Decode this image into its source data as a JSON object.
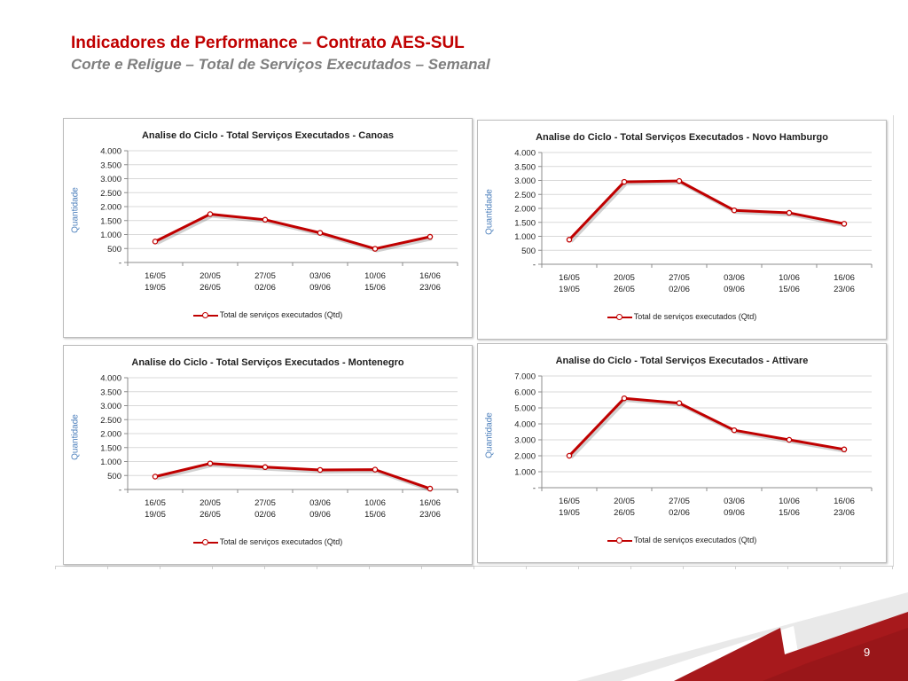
{
  "slide": {
    "title": "Indicadores de Performance – Contrato AES-SUL",
    "subtitle": "Corte e Religue – Total de Serviços Executados – Semanal",
    "page_number": "9"
  },
  "colors": {
    "title": "#c00000",
    "subtitle": "#7f7f7f",
    "series_line": "#c00000",
    "axis_label": "#4a7ebb"
  },
  "chart_data": [
    {
      "type": "line",
      "title": "Analise do Ciclo - Total Serviços Executados - Canoas",
      "ylabel": "Quantidade",
      "xlabel": "",
      "categories": [
        [
          "16/05",
          "19/05"
        ],
        [
          "20/05",
          "26/05"
        ],
        [
          "27/05",
          "02/06"
        ],
        [
          "03/06",
          "09/06"
        ],
        [
          "10/06",
          "15/06"
        ],
        [
          "16/06",
          "23/06"
        ]
      ],
      "ylim": [
        0,
        4000
      ],
      "yticks": [
        "-",
        "500",
        "1.000",
        "1.500",
        "2.000",
        "2.500",
        "3.000",
        "3.500",
        "4.000"
      ],
      "grid": true,
      "legend_position": "bottom",
      "series": [
        {
          "name": "Total de serviços executados (Qtd)",
          "values": [
            750,
            1730,
            1530,
            1060,
            490,
            920
          ]
        }
      ]
    },
    {
      "type": "line",
      "title": "Analise do Ciclo - Total Serviços Executados - Novo Hamburgo",
      "ylabel": "Quantidade",
      "xlabel": "",
      "categories": [
        [
          "16/05",
          "19/05"
        ],
        [
          "20/05",
          "26/05"
        ],
        [
          "27/05",
          "02/06"
        ],
        [
          "03/06",
          "09/06"
        ],
        [
          "10/06",
          "15/06"
        ],
        [
          "16/06",
          "23/06"
        ]
      ],
      "ylim": [
        0,
        4000
      ],
      "yticks": [
        "-",
        "500",
        "1.000",
        "1.500",
        "2.000",
        "2.500",
        "3.000",
        "3.500",
        "4.000"
      ],
      "grid": true,
      "legend_position": "bottom",
      "series": [
        {
          "name": "Total de serviços executados (Qtd)",
          "values": [
            880,
            2950,
            2980,
            1930,
            1840,
            1450
          ]
        }
      ]
    },
    {
      "type": "line",
      "title": "Analise do Ciclo - Total Serviços Executados - Montenegro",
      "ylabel": "Quantidade",
      "xlabel": "",
      "categories": [
        [
          "16/05",
          "19/05"
        ],
        [
          "20/05",
          "26/05"
        ],
        [
          "27/05",
          "02/06"
        ],
        [
          "03/06",
          "09/06"
        ],
        [
          "10/06",
          "15/06"
        ],
        [
          "16/06",
          "23/06"
        ]
      ],
      "ylim": [
        0,
        4000
      ],
      "yticks": [
        "-",
        "500",
        "1.000",
        "1.500",
        "2.000",
        "2.500",
        "3.000",
        "3.500",
        "4.000"
      ],
      "grid": true,
      "legend_position": "bottom",
      "series": [
        {
          "name": "Total de serviços executados (Qtd)",
          "values": [
            460,
            930,
            800,
            700,
            710,
            30
          ]
        }
      ]
    },
    {
      "type": "line",
      "title": "Analise do Ciclo - Total Serviços Executados - Attivare",
      "ylabel": "Quantidade",
      "xlabel": "",
      "categories": [
        [
          "16/05",
          "19/05"
        ],
        [
          "20/05",
          "26/05"
        ],
        [
          "27/05",
          "02/06"
        ],
        [
          "03/06",
          "09/06"
        ],
        [
          "10/06",
          "15/06"
        ],
        [
          "16/06",
          "23/06"
        ]
      ],
      "ylim": [
        0,
        7000
      ],
      "yticks": [
        "-",
        "1.000",
        "2.000",
        "3.000",
        "4.000",
        "5.000",
        "6.000",
        "7.000"
      ],
      "grid": true,
      "legend_position": "bottom",
      "series": [
        {
          "name": "Total de serviços executados (Qtd)",
          "values": [
            2000,
            5600,
            5300,
            3600,
            3000,
            2400
          ]
        }
      ]
    }
  ]
}
